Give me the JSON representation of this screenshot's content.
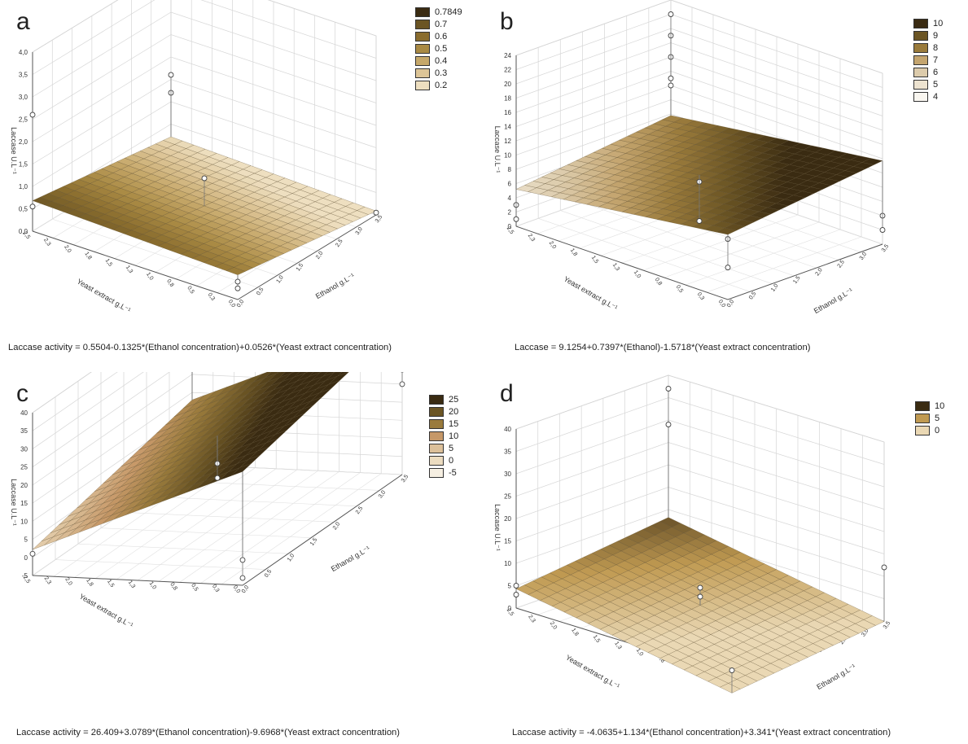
{
  "figure": {
    "panels": [
      {
        "letter": "a",
        "equation": "Laccase activity = 0.5504-0.1325*(Ethanol concentration)+0.0526*(Yeast extract concentration)",
        "legend": [
          "0.7849",
          "0.7",
          "0.6",
          "0.5",
          "0.4",
          "0.3",
          "0.2"
        ]
      },
      {
        "letter": "b",
        "equation": "Laccase = 9.1254+0.7397*(Ethanol)-1.5718*(Yeast extract concentration)",
        "legend": [
          "10",
          "9",
          "8",
          "7",
          "6",
          "5",
          "4"
        ]
      },
      {
        "letter": "c",
        "equation": "Laccase activity = 26.409+3.0789*(Ethanol concentration)-9.6968*(Yeast extract concentration)",
        "legend": [
          "25",
          "20",
          "15",
          "10",
          "5",
          "0",
          "-5"
        ]
      },
      {
        "letter": "d",
        "equation": "Laccase activity = -4.0635+1.134*(Ethanol concentration)+3.341*(Yeast extract concentration)",
        "legend": [
          "10",
          "5",
          "0"
        ]
      }
    ]
  },
  "chart_data": [
    {
      "type": "surface",
      "panel": "a",
      "title": "",
      "xlabel": "Ethanol g.L⁻¹",
      "ylabel": "Yeast extract g.L⁻¹",
      "zlabel": "Laccase U.L⁻¹",
      "xlim": [
        0,
        3.5
      ],
      "ylim": [
        0,
        2.5
      ],
      "zlim": [
        0,
        4
      ],
      "z_ticks": [
        "0,0",
        "0,5",
        "1,0",
        "1,5",
        "2,0",
        "2,5",
        "3,0",
        "3,5",
        "4,0"
      ],
      "model": {
        "intercept": 0.5504,
        "ethanol": -0.1325,
        "yeast": 0.0526
      },
      "legend_levels": [
        0.7849,
        0.7,
        0.6,
        0.5,
        0.4,
        0.3,
        0.2
      ],
      "legend_colors": [
        "#3a2b12",
        "#6b5524",
        "#8a6d2e",
        "#a98a44",
        "#c6a86a",
        "#ddc597",
        "#eedfc0"
      ],
      "points": [
        [
          0.0,
          2.5,
          0.55
        ],
        [
          0.0,
          2.5,
          2.6
        ],
        [
          3.5,
          2.5,
          1.2
        ],
        [
          3.5,
          2.5,
          1.6
        ],
        [
          1.75,
          1.25,
          1.0
        ],
        [
          0.0,
          0.0,
          0.25
        ],
        [
          0.0,
          0.0,
          0.4
        ],
        [
          3.5,
          0.0,
          0.05
        ]
      ]
    },
    {
      "type": "surface",
      "panel": "b",
      "title": "",
      "xlabel": "Ethanol g.L⁻¹",
      "ylabel": "Yeast extract g.L⁻¹",
      "zlabel": "Laccase U.L⁻¹",
      "xlim": [
        0,
        3.5
      ],
      "ylim": [
        0,
        2.5
      ],
      "zlim": [
        0,
        24
      ],
      "z_ticks": [
        "0",
        "2",
        "4",
        "6",
        "8",
        "10",
        "12",
        "14",
        "16",
        "18",
        "20",
        "22",
        "24"
      ],
      "model": {
        "intercept": 9.1254,
        "ethanol": 0.7397,
        "yeast": -1.5718
      },
      "legend_levels": [
        10,
        9,
        8,
        7,
        6,
        5,
        4
      ],
      "legend_colors": [
        "#3a2b12",
        "#6b5524",
        "#9a7b3c",
        "#c4a56f",
        "#dccbab",
        "#ede3d0",
        "#f9f6f0"
      ],
      "points": [
        [
          0.0,
          2.5,
          3.0
        ],
        [
          0.0,
          0.0,
          8.5
        ],
        [
          0.0,
          0.0,
          4.5
        ],
        [
          3.5,
          2.5,
          16.0
        ],
        [
          3.5,
          2.5,
          19.0
        ],
        [
          3.5,
          2.5,
          22.0
        ],
        [
          3.5,
          2.5,
          13.0
        ],
        [
          3.5,
          2.5,
          12.0
        ],
        [
          1.75,
          1.25,
          7.5
        ],
        [
          1.75,
          1.25,
          2.0
        ],
        [
          3.5,
          0.0,
          4.0
        ],
        [
          3.5,
          0.0,
          2.0
        ],
        [
          0.0,
          2.5,
          1.0
        ]
      ]
    },
    {
      "type": "surface",
      "panel": "c",
      "title": "",
      "xlabel": "Ethanol g.L⁻¹",
      "ylabel": "Yeast extract g.L⁻¹",
      "zlabel": "Laccase U.L⁻¹",
      "xlim": [
        0,
        3.5
      ],
      "ylim": [
        0,
        2.5
      ],
      "zlim": [
        -5,
        40
      ],
      "z_ticks": [
        "-5",
        "0",
        "5",
        "10",
        "15",
        "20",
        "25",
        "30",
        "35",
        "40"
      ],
      "model": {
        "intercept": 26.409,
        "ethanol": 3.0789,
        "yeast": -9.6968
      },
      "legend_levels": [
        25,
        20,
        15,
        10,
        5,
        0,
        -5
      ],
      "legend_colors": [
        "#3a2b12",
        "#6b5524",
        "#9a7b3c",
        "#c69868",
        "#dcc09a",
        "#ecdcc0",
        "#f6efe2"
      ],
      "points": [
        [
          0.0,
          2.5,
          1.0
        ],
        [
          3.5,
          2.5,
          35.0
        ],
        [
          3.5,
          2.5,
          31.0
        ],
        [
          3.5,
          2.5,
          26.0
        ],
        [
          3.5,
          0.0,
          24.0
        ],
        [
          3.5,
          0.0,
          20.0
        ],
        [
          1.75,
          1.25,
          12.0
        ],
        [
          1.75,
          1.25,
          8.0
        ],
        [
          0.0,
          0.0,
          -3.0
        ],
        [
          0.0,
          0.0,
          2.0
        ]
      ]
    },
    {
      "type": "surface",
      "panel": "d",
      "title": "",
      "xlabel": "Ethanol g.L⁻¹",
      "ylabel": "Yeast extract g.L⁻¹",
      "zlabel": "Laccase U.L⁻¹",
      "xlim": [
        0,
        3.5
      ],
      "ylim": [
        0,
        2.5
      ],
      "zlim": [
        0,
        40
      ],
      "z_ticks": [
        "0",
        "5",
        "10",
        "15",
        "20",
        "25",
        "30",
        "35",
        "40"
      ],
      "model": {
        "intercept": -4.0635,
        "ethanol": 1.134,
        "yeast": 3.341
      },
      "legend_levels": [
        10,
        5,
        0
      ],
      "legend_colors": [
        "#3a2b12",
        "#c09a52",
        "#ead8b4"
      ],
      "points": [
        [
          3.5,
          2.5,
          37.0
        ],
        [
          3.5,
          2.5,
          29.0
        ],
        [
          0.0,
          2.5,
          5.0
        ],
        [
          0.0,
          2.5,
          3.0
        ],
        [
          1.75,
          1.25,
          6.0
        ],
        [
          1.75,
          1.25,
          4.0
        ],
        [
          3.5,
          0.0,
          12.0
        ],
        [
          0.0,
          0.0,
          1.0
        ]
      ]
    }
  ]
}
